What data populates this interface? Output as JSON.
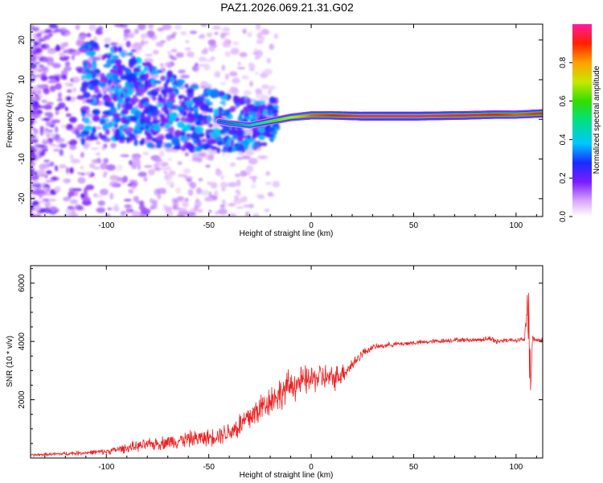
{
  "title": "PAZ1.2026.069.21.31.G02",
  "chart_data": [
    {
      "type": "heatmap",
      "name": "spectrogram",
      "xlabel": "Height of straight line (km)",
      "ylabel": "Frequency (Hz)",
      "xlim": [
        -137,
        113
      ],
      "ylim": [
        -24.5,
        24
      ],
      "xticks": [
        -100,
        -50,
        0,
        50,
        100
      ],
      "yticks": [
        -20,
        -10,
        0,
        10,
        20
      ],
      "xtick_labels": [
        "-100",
        "-50",
        "0",
        "50",
        "100"
      ],
      "ytick_labels": [
        "-20",
        "-10",
        "0",
        "10",
        "20"
      ],
      "colorbar": {
        "label": "Normalized spectral amplitude",
        "range": [
          0,
          1
        ],
        "ticks": [
          0.0,
          0.2,
          0.4,
          0.6,
          0.8
        ],
        "tick_labels": [
          "0.0",
          "0.2",
          "0.4",
          "0.6",
          "0.8"
        ]
      },
      "ridge": [
        {
          "x": -100,
          "f": 7,
          "amp": 0.22
        },
        {
          "x": -90,
          "f": 6,
          "amp": 0.25
        },
        {
          "x": -80,
          "f": 3.5,
          "amp": 0.3
        },
        {
          "x": -70,
          "f": 2.5,
          "amp": 0.32
        },
        {
          "x": -60,
          "f": 1,
          "amp": 0.35
        },
        {
          "x": -50,
          "f": 0,
          "amp": 0.35
        },
        {
          "x": -40,
          "f": -1,
          "amp": 0.4
        },
        {
          "x": -30,
          "f": -1.5,
          "amp": 0.45
        },
        {
          "x": -20,
          "f": -0.5,
          "amp": 0.6
        },
        {
          "x": -10,
          "f": 0.5,
          "amp": 0.7
        },
        {
          "x": 0,
          "f": 1,
          "amp": 0.85
        },
        {
          "x": 10,
          "f": 1,
          "amp": 0.9
        },
        {
          "x": 25,
          "f": 0.8,
          "amp": 1.0
        },
        {
          "x": 50,
          "f": 0.8,
          "amp": 1.0
        },
        {
          "x": 75,
          "f": 1,
          "amp": 0.95
        },
        {
          "x": 90,
          "f": 1.2,
          "amp": 0.9
        },
        {
          "x": 100,
          "f": 1.2,
          "amp": 0.85
        },
        {
          "x": 113,
          "f": 1.5,
          "amp": 0.9
        }
      ]
    },
    {
      "type": "line",
      "name": "snr",
      "xlabel": "Height of straight line (km)",
      "ylabel": "SNR (10 * v/v)",
      "xlim": [
        -137,
        113
      ],
      "ylim": [
        0,
        6600
      ],
      "xticks": [
        -100,
        -50,
        0,
        50,
        100
      ],
      "yticks": [
        2000,
        4000,
        6000
      ],
      "xtick_labels": [
        "-100",
        "-50",
        "0",
        "50",
        "100"
      ],
      "ytick_labels": [
        "2000",
        "4000",
        "6000"
      ],
      "color": "#ee2222",
      "series": [
        {
          "name": "SNR",
          "x": [
            -137,
            -120,
            -100,
            -90,
            -80,
            -70,
            -60,
            -50,
            -45,
            -40,
            -35,
            -30,
            -25,
            -20,
            -15,
            -10,
            -5,
            0,
            5,
            10,
            15,
            20,
            25,
            30,
            40,
            50,
            60,
            70,
            80,
            88,
            90,
            95,
            100,
            104,
            106,
            107,
            108,
            110,
            113
          ],
          "y": [
            100,
            150,
            220,
            350,
            450,
            550,
            650,
            700,
            800,
            900,
            1100,
            1400,
            1700,
            2000,
            2200,
            2500,
            2600,
            2700,
            2800,
            2700,
            2900,
            3200,
            3600,
            3800,
            3900,
            3950,
            4000,
            4050,
            4050,
            4100,
            4000,
            4050,
            4050,
            4050,
            5200,
            2200,
            4100,
            4050,
            4050
          ],
          "noise": [
            60,
            80,
            120,
            200,
            250,
            300,
            350,
            350,
            400,
            450,
            600,
            700,
            650,
            650,
            700,
            700,
            650,
            600,
            600,
            550,
            450,
            300,
            200,
            120,
            100,
            100,
            100,
            100,
            100,
            120,
            150,
            100,
            100,
            100,
            1200,
            900,
            150,
            100,
            100
          ]
        }
      ]
    }
  ]
}
